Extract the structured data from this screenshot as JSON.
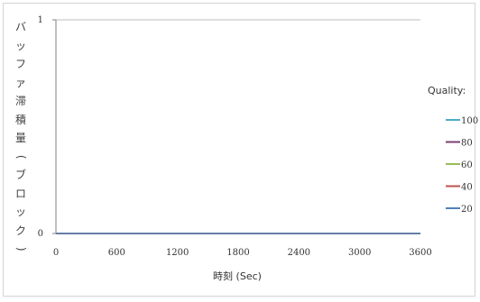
{
  "chart_data": {
    "type": "line",
    "title": "",
    "xlabel": "時刻 (Sec)",
    "ylabel": "バッファ滞積量(ブロック)",
    "x_ticks": [
      0,
      600,
      1200,
      1800,
      2400,
      3000,
      3600
    ],
    "y_ticks": [
      0,
      1
    ],
    "xlim": [
      0,
      3600
    ],
    "ylim": [
      0,
      1
    ],
    "grid": true,
    "legend_title": "Quality:",
    "legend_position": "right",
    "x": [
      0,
      3600
    ],
    "series": [
      {
        "name": "100",
        "color": "#4bacc6",
        "values": [
          0,
          0
        ]
      },
      {
        "name": "80",
        "color": "#7b3f6e",
        "values": [
          0,
          0
        ]
      },
      {
        "name": "60",
        "color": "#9bbb59",
        "values": [
          0,
          0
        ]
      },
      {
        "name": "40",
        "color": "#c0504d",
        "values": [
          0,
          0
        ]
      },
      {
        "name": "20",
        "color": "#4f81bd",
        "values": [
          0,
          0
        ]
      }
    ]
  }
}
